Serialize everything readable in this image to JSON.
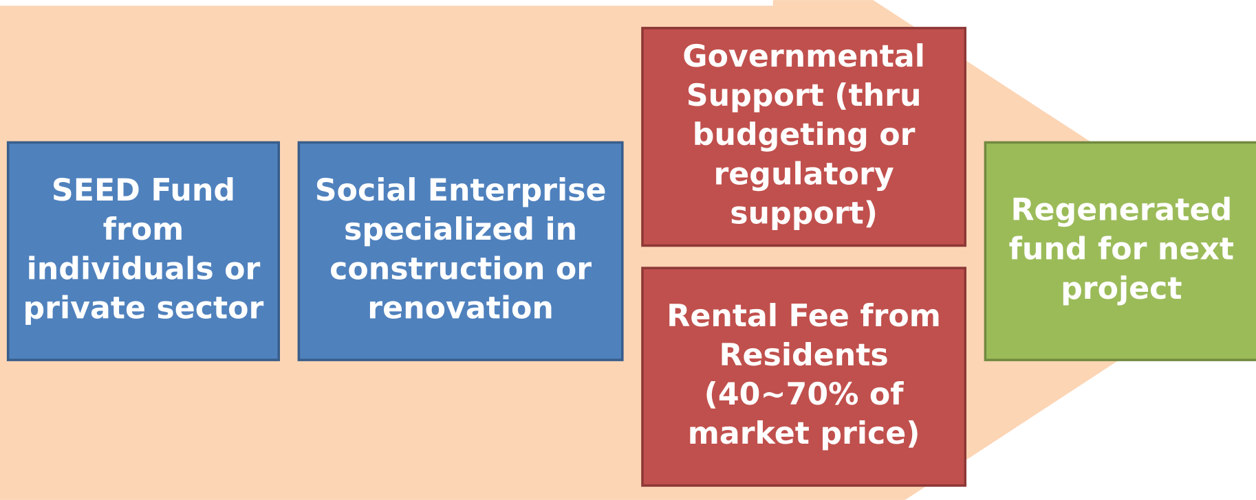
{
  "boxes": [
    {
      "lines": [
        "SEED Fund",
        "from",
        "individuals or",
        "private sector"
      ]
    },
    {
      "lines": [
        "Social Enterprise",
        "specialized in",
        "construction or",
        "renovation"
      ]
    },
    {
      "lines": [
        "Governmental",
        "Support (thru",
        "budgeting or",
        "regulatory",
        "support)"
      ]
    },
    {
      "lines": [
        "Rental Fee from",
        "Residents",
        "(40~70% of",
        "market price)"
      ]
    },
    {
      "lines": [
        "Regenerated",
        "fund for next",
        "project"
      ]
    }
  ]
}
